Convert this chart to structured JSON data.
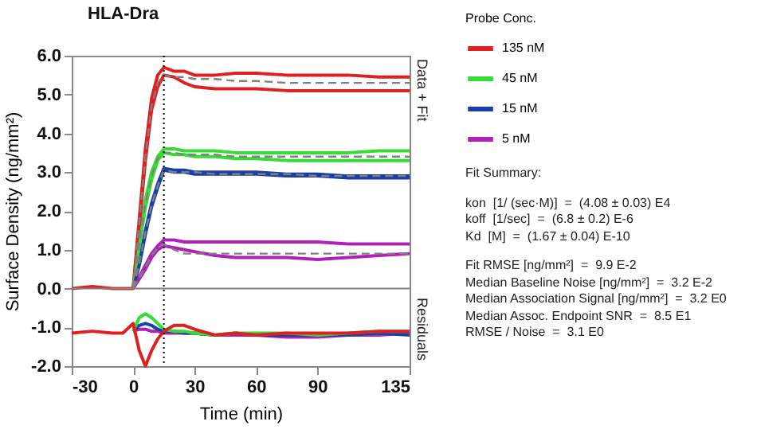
{
  "chart_data": {
    "type": "line",
    "title": "HLA-Dra",
    "xlabel": "Time (min)",
    "ylabel": "Surface Density (ng/mm²)",
    "legend_title": "Probe Conc.",
    "legend": "right",
    "marker": "none",
    "grid": false,
    "x": [
      -30,
      -20,
      -10,
      -5,
      0,
      3,
      6,
      9,
      12,
      15,
      20,
      25,
      30,
      40,
      50,
      60,
      75,
      90,
      105,
      120,
      135
    ],
    "xlim": [
      -30,
      135
    ],
    "xticks": [
      -30,
      0,
      30,
      60,
      90,
      135
    ],
    "ylim": [
      -2,
      6
    ],
    "yticks": [
      {
        "value": -2,
        "label": "-2.0"
      },
      {
        "value": -1,
        "label": "-1.0"
      },
      {
        "value": 0,
        "label": "0.0"
      },
      {
        "value": 1,
        "label": "1.0"
      },
      {
        "value": 2,
        "label": "2.0"
      },
      {
        "value": 3,
        "label": "3.0"
      },
      {
        "value": 4,
        "label": "4.0"
      },
      {
        "value": 5,
        "label": "5.0"
      },
      {
        "value": 6,
        "label": "6.0"
      }
    ],
    "series": [
      {
        "name": "135 nM",
        "color": "#e02020",
        "line_style": "solid",
        "values": [
          0,
          0.05,
          0,
          0,
          0,
          1.8,
          3.6,
          4.9,
          5.5,
          5.7,
          5.6,
          5.6,
          5.5,
          5.5,
          5.55,
          5.55,
          5.5,
          5.5,
          5.5,
          5.45,
          5.45
        ]
      },
      {
        "name": "45 nM",
        "color": "#33dd33",
        "line_style": "solid",
        "values": [
          null,
          null,
          null,
          null,
          0,
          1.2,
          2.3,
          3.0,
          3.4,
          3.6,
          3.6,
          3.55,
          3.55,
          3.55,
          3.5,
          3.5,
          3.5,
          3.5,
          3.5,
          3.55,
          3.55
        ]
      },
      {
        "name": "15 nM",
        "color": "#1a3fa8",
        "line_style": "solid",
        "values": [
          null,
          null,
          null,
          null,
          0,
          0.7,
          1.5,
          2.2,
          2.7,
          3.1,
          3.05,
          3.05,
          3.0,
          3.0,
          3.0,
          3.0,
          2.95,
          2.95,
          2.9,
          2.9,
          2.9
        ]
      },
      {
        "name": "5 nM",
        "color": "#b020b8",
        "line_style": "solid",
        "values": [
          null,
          null,
          null,
          null,
          0,
          0.3,
          0.6,
          0.9,
          1.1,
          1.25,
          1.25,
          1.2,
          1.2,
          1.2,
          1.2,
          1.2,
          1.2,
          1.2,
          1.15,
          1.15,
          1.15
        ]
      },
      {
        "color": "#e02020",
        "line_style": "solid",
        "values": [
          null,
          null,
          null,
          null,
          0,
          1.6,
          3.3,
          4.6,
          5.2,
          5.5,
          5.45,
          5.3,
          5.2,
          5.15,
          5.15,
          5.15,
          5.1,
          5.1,
          5.1,
          5.1,
          5.1
        ]
      },
      {
        "color": "#33dd33",
        "line_style": "solid",
        "values": [
          null,
          null,
          null,
          null,
          0,
          1.1,
          2.1,
          2.8,
          3.3,
          3.5,
          3.45,
          3.45,
          3.4,
          3.4,
          3.35,
          3.35,
          3.3,
          3.3,
          3.3,
          3.3,
          3.3
        ]
      },
      {
        "color": "#1a3fa8",
        "line_style": "solid",
        "values": [
          null,
          null,
          null,
          null,
          0,
          0.6,
          1.4,
          2.1,
          2.6,
          3.05,
          3.0,
          3.0,
          2.95,
          2.95,
          2.95,
          2.95,
          2.9,
          2.9,
          2.85,
          2.85,
          2.85
        ]
      },
      {
        "color": "#b020b8",
        "line_style": "solid",
        "values": [
          null,
          null,
          null,
          null,
          0,
          0.25,
          0.5,
          0.8,
          1.0,
          1.1,
          1.05,
          1.0,
          0.95,
          0.85,
          0.8,
          0.8,
          0.8,
          0.75,
          0.8,
          0.85,
          0.9
        ]
      },
      {
        "color": "#808080",
        "line_style": "dashed",
        "values": [
          null,
          null,
          null,
          null,
          0,
          1.7,
          3.4,
          4.7,
          5.3,
          5.5,
          5.45,
          5.45,
          5.4,
          5.4,
          5.35,
          5.35,
          5.3,
          5.3,
          5.3,
          5.3,
          5.3
        ]
      },
      {
        "color": "#808080",
        "line_style": "dashed",
        "values": [
          null,
          null,
          null,
          null,
          0,
          1.15,
          2.2,
          2.9,
          3.35,
          3.5,
          3.5,
          3.45,
          3.45,
          3.45,
          3.4,
          3.4,
          3.4,
          3.4,
          3.4,
          3.4,
          3.4
        ]
      },
      {
        "color": "#808080",
        "line_style": "dashed",
        "values": [
          null,
          null,
          null,
          null,
          0,
          0.65,
          1.45,
          2.15,
          2.65,
          3.05,
          3.0,
          3.0,
          3.0,
          2.95,
          2.95,
          2.95,
          2.95,
          2.9,
          2.9,
          2.9,
          2.9
        ]
      },
      {
        "color": "#808080",
        "line_style": "dashed",
        "values": [
          null,
          null,
          null,
          null,
          0,
          0.28,
          0.55,
          0.85,
          1.05,
          1.15,
          1.0,
          0.9,
          0.9,
          0.9,
          0.9,
          0.9,
          0.9,
          0.9,
          0.9,
          0.9,
          0.9
        ]
      },
      {
        "color": "#b020b8",
        "line_style": "solid",
        "values": [
          null,
          null,
          null,
          null,
          -1.1,
          -1.05,
          -1.05,
          -1.1,
          -1.1,
          -1.15,
          -1.15,
          -1.15,
          -1.15,
          -1.2,
          -1.2,
          -1.2,
          -1.25,
          -1.25,
          -1.2,
          -1.2,
          -1.15
        ]
      },
      {
        "color": "#1a3fa8",
        "line_style": "solid",
        "values": [
          null,
          null,
          null,
          null,
          -1.1,
          -0.95,
          -0.9,
          -0.95,
          -1.05,
          -1.1,
          -1.1,
          -1.15,
          -1.15,
          -1.2,
          -1.15,
          -1.2,
          -1.2,
          -1.2,
          -1.2,
          -1.15,
          -1.2
        ]
      },
      {
        "color": "#33dd33",
        "line_style": "solid",
        "values": [
          null,
          null,
          null,
          null,
          -1.1,
          -0.75,
          -0.65,
          -0.75,
          -0.9,
          -1.05,
          -1.1,
          -1.1,
          -1.15,
          -1.2,
          -1.15,
          -1.15,
          -1.15,
          -1.2,
          -1.15,
          -1.1,
          -1.1
        ]
      },
      {
        "color": "#e02020",
        "line_style": "solid",
        "values": [
          -1.15,
          -1.1,
          -1.15,
          -1.15,
          -0.9,
          -1.6,
          -2.0,
          -1.6,
          -1.3,
          -1.1,
          -0.95,
          -0.95,
          -1.05,
          -1.2,
          -1.15,
          -1.2,
          -1.15,
          -1.15,
          -1.15,
          -1.1,
          -1.1
        ]
      }
    ],
    "ref_lines": [
      {
        "axis": "x",
        "value": 15,
        "color": "#000000",
        "line_style": "dotted"
      },
      {
        "axis": "y",
        "value": 0,
        "color": "#808080",
        "line_style": "solid"
      }
    ],
    "annotations": [
      "Data + Fit",
      "Residuals",
      "Fit Summary:",
      "kon  [1/ (sec·M)]  =  (4.08 ± 0.03) E4",
      "koff  [1/sec]  =  (6.8 ± 0.2) E-6",
      "Kd  [M]  =  (1.67 ± 0.04) E-10",
      "Fit RMSE [ng/mm²]  =  9.9 E-2",
      "Median Baseline Noise [ng/mm²]  =  3.2 E-2",
      "Median Association Signal [ng/mm²]  =  3.2 E0",
      "Median Assoc. Endpoint SNR  =  8.5 E1",
      "RMSE / Noise  =  3.1 E0"
    ]
  }
}
